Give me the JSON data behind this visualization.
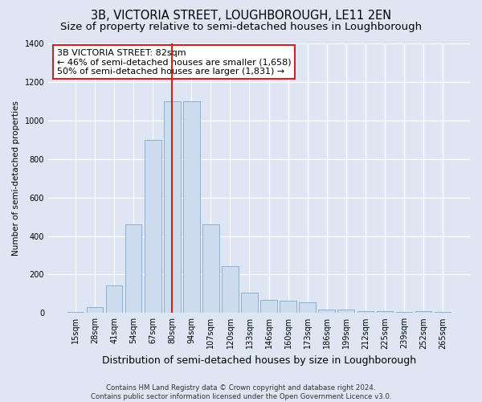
{
  "title": "3B, VICTORIA STREET, LOUGHBOROUGH, LE11 2EN",
  "subtitle": "Size of property relative to semi-detached houses in Loughborough",
  "xlabel": "Distribution of semi-detached houses by size in Loughborough",
  "ylabel": "Number of semi-detached properties",
  "categories": [
    "15sqm",
    "28sqm",
    "41sqm",
    "54sqm",
    "67sqm",
    "80sqm",
    "94sqm",
    "107sqm",
    "120sqm",
    "133sqm",
    "146sqm",
    "160sqm",
    "173sqm",
    "186sqm",
    "199sqm",
    "212sqm",
    "225sqm",
    "239sqm",
    "252sqm",
    "265sqm"
  ],
  "values": [
    5,
    30,
    145,
    460,
    900,
    1100,
    1100,
    460,
    245,
    105,
    70,
    65,
    55,
    20,
    18,
    10,
    8,
    5,
    8,
    5
  ],
  "bar_color": "#cddcee",
  "bar_edge_color": "#8aafd4",
  "vline_x": 5.0,
  "vline_color": "#cc2222",
  "annotation_text": "3B VICTORIA STREET: 82sqm\n← 46% of semi-detached houses are smaller (1,658)\n50% of semi-detached houses are larger (1,831) →",
  "annotation_box_facecolor": "#ffffff",
  "annotation_box_edgecolor": "#cc2222",
  "ylim": [
    0,
    1400
  ],
  "yticks": [
    0,
    200,
    400,
    600,
    800,
    1000,
    1200,
    1400
  ],
  "background_color": "#dde6f2",
  "plot_background_color": "#dde6f2",
  "grid_color": "#ffffff",
  "title_fontsize": 10.5,
  "subtitle_fontsize": 9.5,
  "xlabel_fontsize": 9,
  "ylabel_fontsize": 7.5,
  "tick_fontsize": 7,
  "footer_text": "Contains HM Land Registry data © Crown copyright and database right 2024.\nContains public sector information licensed under the Open Government Licence v3.0."
}
